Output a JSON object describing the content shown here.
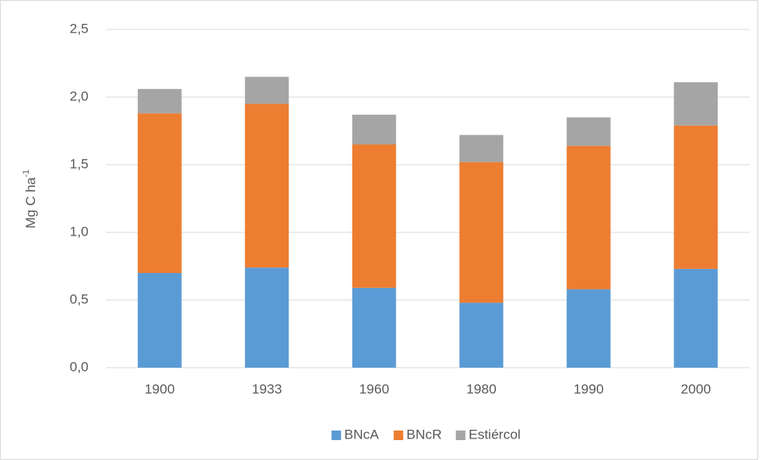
{
  "chart_data": {
    "type": "bar",
    "stacked": true,
    "ylabel": {
      "text": "Mg C ha",
      "sup": "-1"
    },
    "categories": [
      "1900",
      "1933",
      "1960",
      "1980",
      "1990",
      "2000"
    ],
    "series": [
      {
        "name": "BNcA",
        "color": "#5b9bd5",
        "values": [
          0.7,
          0.74,
          0.59,
          0.48,
          0.58,
          0.73
        ]
      },
      {
        "name": "BNcR",
        "color": "#ed7d31",
        "values": [
          1.18,
          1.21,
          1.06,
          1.04,
          1.06,
          1.06
        ]
      },
      {
        "name": "Estiércol",
        "color": "#a5a5a5",
        "values": [
          0.18,
          0.2,
          0.22,
          0.2,
          0.21,
          0.32
        ]
      }
    ],
    "ylim": [
      0,
      2.5
    ],
    "yticks": [
      {
        "value": 0,
        "label": "0,0"
      },
      {
        "value": 0.5,
        "label": "0,5"
      },
      {
        "value": 1,
        "label": "1,0"
      },
      {
        "value": 1.5,
        "label": "1,5"
      },
      {
        "value": 2,
        "label": "2,0"
      },
      {
        "value": 2.5,
        "label": "2,5"
      }
    ],
    "grid": true,
    "legend": "bottom"
  }
}
